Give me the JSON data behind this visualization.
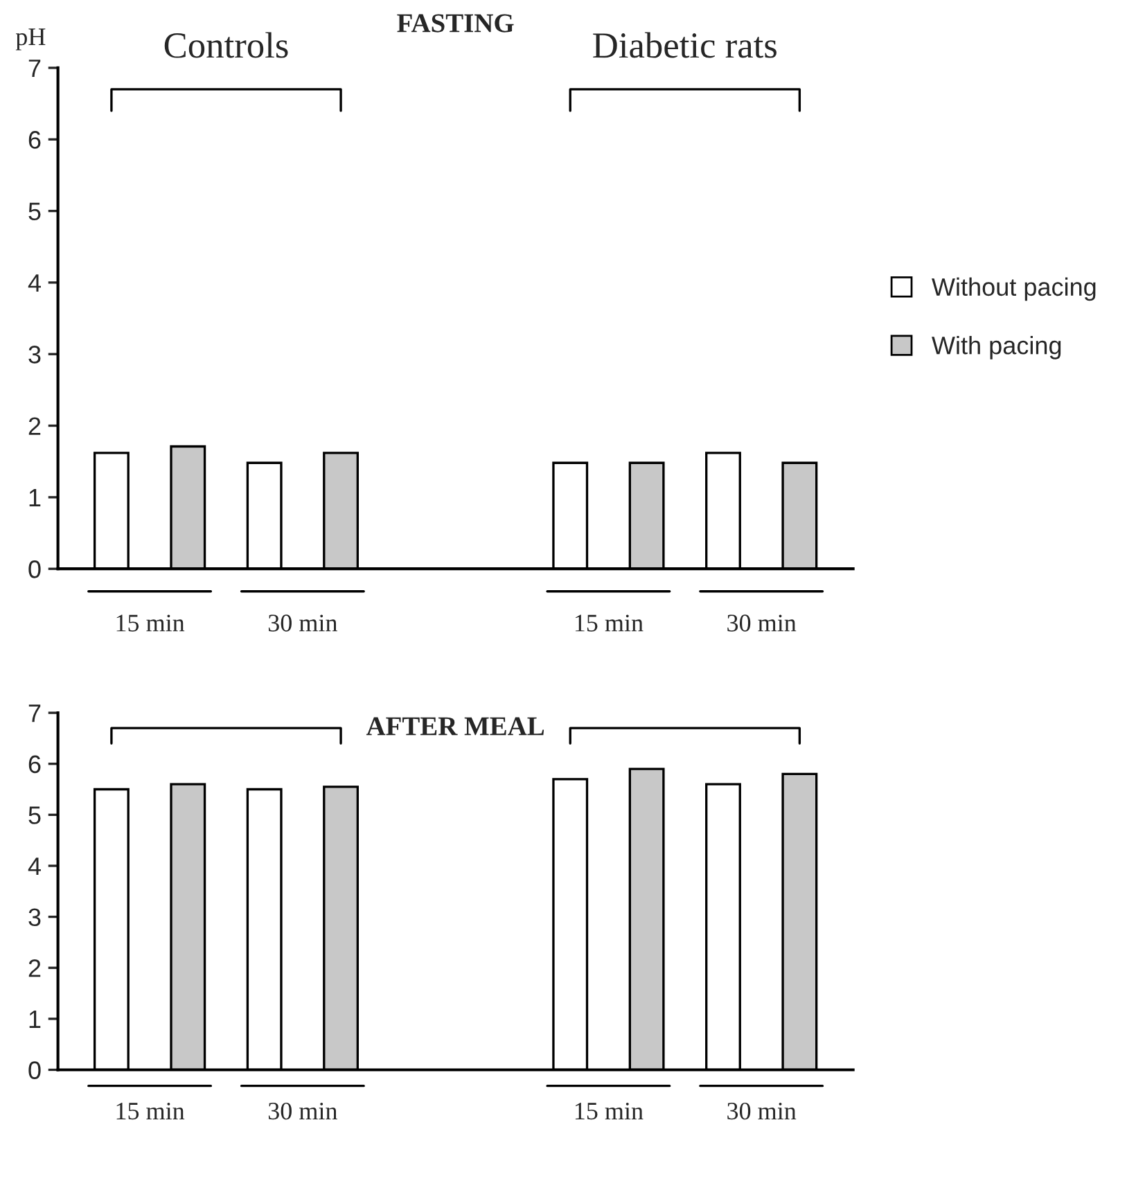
{
  "chart_data": [
    {
      "type": "bar",
      "title": "FASTING",
      "ylabel": "pH",
      "categories": [
        "15 min",
        "30 min",
        null,
        "15 min",
        "30 min"
      ],
      "ylim": [
        0,
        7
      ],
      "yticks": [
        0,
        1,
        2,
        3,
        4,
        5,
        6,
        7
      ],
      "grid": false,
      "legend": "right",
      "annotations": [
        "Controls",
        "Diabetic rats"
      ],
      "series": [
        {
          "name": "Without pacing",
          "color": "#ffffff",
          "values": [
            1.62,
            1.48,
            null,
            1.48,
            1.62
          ]
        },
        {
          "name": "With pacing",
          "color": "#c8c8c8",
          "values": [
            1.71,
            1.62,
            null,
            1.48,
            1.48
          ]
        }
      ]
    },
    {
      "type": "bar",
      "title": "AFTER MEAL",
      "categories": [
        "15 min",
        "30 min",
        null,
        "15 min",
        "30 min"
      ],
      "ylim": [
        0,
        7
      ],
      "yticks": [
        0,
        1,
        2,
        3,
        4,
        5,
        6,
        7
      ],
      "grid": false,
      "series": [
        {
          "color": "#ffffff",
          "values": [
            5.5,
            5.5,
            null,
            5.7,
            5.6
          ]
        },
        {
          "color": "#c8c8c8",
          "values": [
            5.6,
            5.55,
            null,
            5.9,
            5.8
          ]
        }
      ]
    }
  ]
}
